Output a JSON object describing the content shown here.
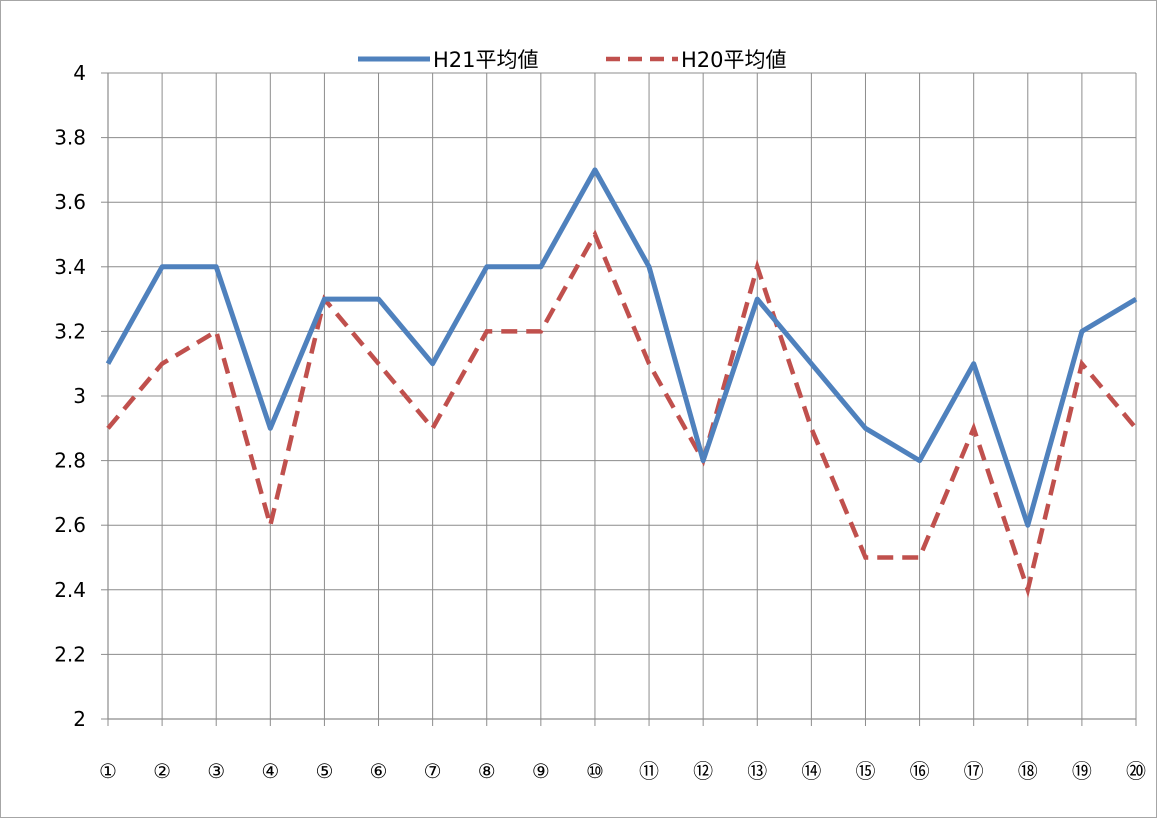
{
  "chart_data": {
    "type": "line",
    "title": "",
    "xlabel": "",
    "ylabel": "",
    "categories": [
      "①",
      "②",
      "③",
      "④",
      "⑤",
      "⑥",
      "⑦",
      "⑧",
      "⑨",
      "⑩",
      "⑪",
      "⑫",
      "⑬",
      "⑭",
      "⑮",
      "⑯",
      "⑰",
      "⑱",
      "⑲",
      "⑳"
    ],
    "ylim": [
      2,
      4
    ],
    "yticks": [
      2,
      2.2,
      2.4,
      2.6,
      2.8,
      3,
      3.2,
      3.4,
      3.6,
      3.8,
      4
    ],
    "ytick_labels": [
      "2",
      "2.2",
      "2.4",
      "2.6",
      "2.8",
      "3",
      "3.2",
      "3.4",
      "3.6",
      "3.8",
      "4"
    ],
    "grid": true,
    "legend_position": "top-center",
    "series": [
      {
        "name": "H21平均値",
        "color": "#4f81bd",
        "style": "solid",
        "values": [
          3.1,
          3.4,
          3.4,
          2.9,
          3.3,
          3.3,
          3.1,
          3.4,
          3.4,
          3.7,
          3.4,
          2.8,
          3.3,
          3.1,
          2.9,
          2.8,
          3.1,
          2.6,
          3.2,
          3.3
        ]
      },
      {
        "name": "H20平均値",
        "color": "#c0504d",
        "style": "dashed",
        "values": [
          2.9,
          3.1,
          3.2,
          2.6,
          3.3,
          3.1,
          2.9,
          3.2,
          3.2,
          3.5,
          3.1,
          2.8,
          3.4,
          2.9,
          2.5,
          2.5,
          2.9,
          2.4,
          3.1,
          2.9
        ]
      }
    ]
  }
}
